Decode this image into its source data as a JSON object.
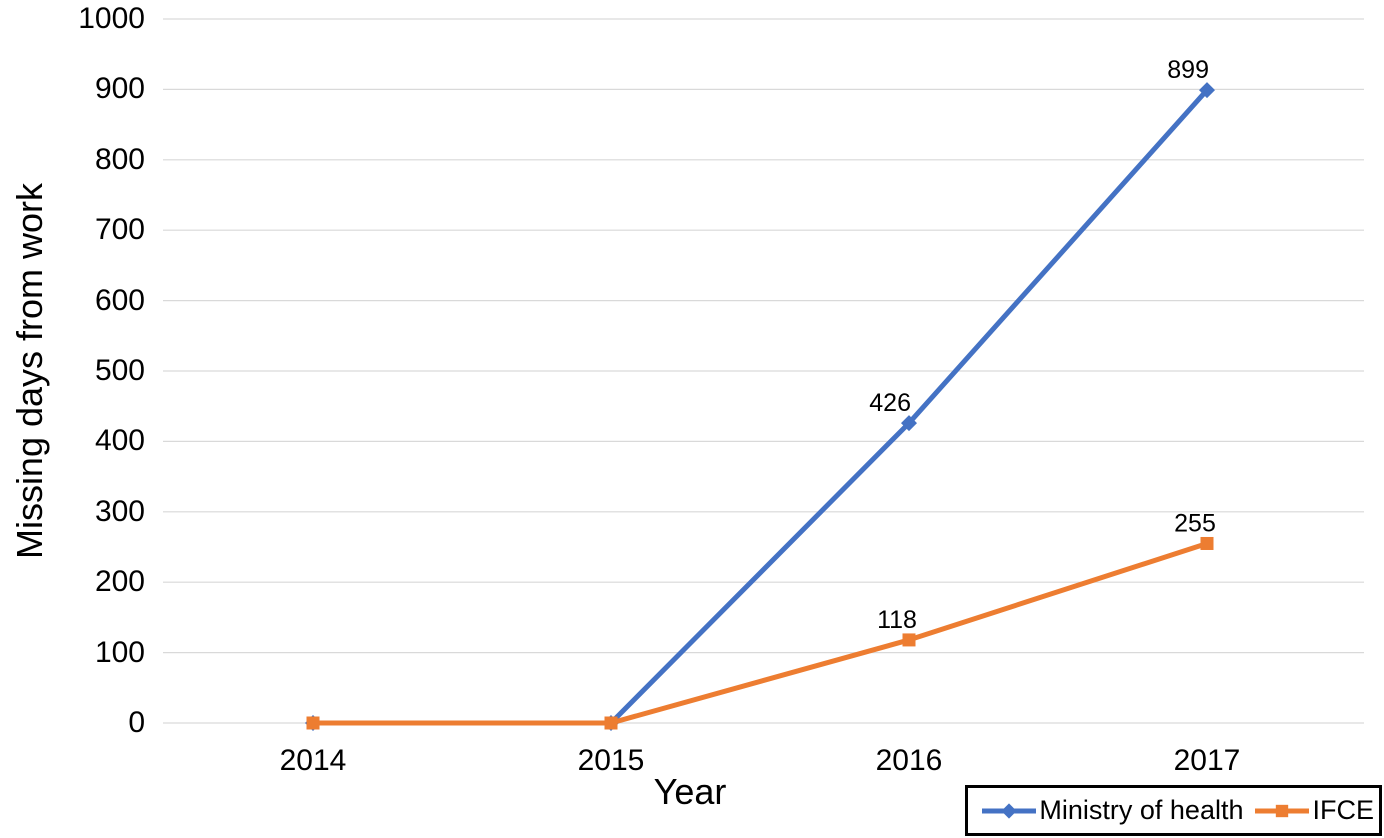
{
  "chart_data": {
    "type": "line",
    "title": "",
    "xlabel": "Year",
    "ylabel": "Missing days from work",
    "categories": [
      "2014",
      "2015",
      "2016",
      "2017"
    ],
    "series": [
      {
        "name": "Ministry of health",
        "color": "#4472C4",
        "marker": "diamond",
        "values": [
          0,
          0,
          426,
          899
        ],
        "point_labels": [
          "",
          "",
          "426",
          "899"
        ]
      },
      {
        "name": "IFCE",
        "color": "#ED7D31",
        "marker": "square",
        "values": [
          0,
          0,
          118,
          255
        ],
        "point_labels": [
          "",
          "",
          "118",
          "255"
        ]
      }
    ],
    "ylim": [
      0,
      1000
    ],
    "ytick_step": 100,
    "grid": true,
    "gridline_color": "#d9d9d9",
    "legend_position": "bottom-right",
    "legend_border_color": "#000000",
    "text_color": "#000000",
    "background_color": "#ffffff"
  }
}
